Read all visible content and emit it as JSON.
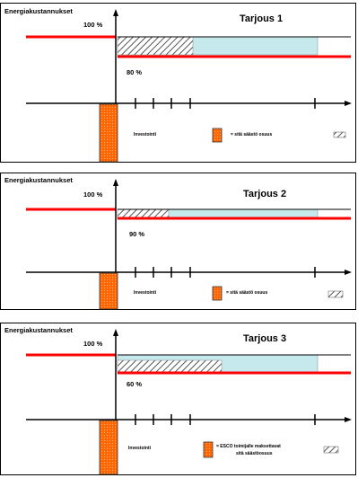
{
  "colors": {
    "red": "#ff0000",
    "cyan": "#c6e9ee",
    "orange": "#ff6600",
    "hatch": "#555555",
    "axis": "#000000"
  },
  "panels": [
    {
      "title": "Tarjous 1",
      "y_axis_label": "Energiakustannukset",
      "baseline_label": "100 %",
      "level_label": "80 %",
      "legend_investment": "Investointi",
      "legend_text": "= sitä säästö osuus",
      "legend_text2": ""
    },
    {
      "title": "Tarjous 2",
      "y_axis_label": "Energiakustannukset",
      "baseline_label": "100 %",
      "level_label": "90 %",
      "legend_investment": "Investointi",
      "legend_text": "= sitä säästö osuus",
      "legend_text2": ""
    },
    {
      "title": "Tarjous 3",
      "y_axis_label": "Energiakustannukset",
      "baseline_label": "100 %",
      "level_label": "60 %",
      "legend_investment": "Investointi",
      "legend_text": "= ESCO toimijalle maksettavat",
      "legend_text2": "sitä säästöosuus"
    }
  ]
}
